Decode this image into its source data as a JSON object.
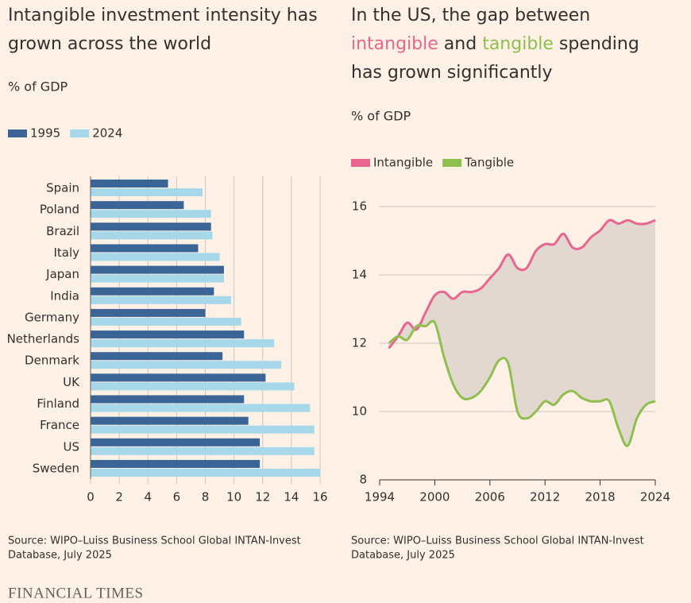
{
  "chart_data": [
    {
      "type": "bar",
      "orientation": "horizontal",
      "title_lines": [
        [
          {
            "text": "Intangible investment intensity has"
          }
        ],
        [
          {
            "text": "grown across the world"
          }
        ]
      ],
      "subtitle": "% of GDP",
      "categories": [
        "Spain",
        "Poland",
        "Brazil",
        "Italy",
        "Japan",
        "India",
        "Germany",
        "Netherlands",
        "Denmark",
        "UK",
        "Finland",
        "France",
        "US",
        "Sweden"
      ],
      "series": [
        {
          "name": "1995",
          "color": "#3b6597",
          "values": [
            5.4,
            6.5,
            8.4,
            7.5,
            9.3,
            8.6,
            8.0,
            10.7,
            9.2,
            12.2,
            10.7,
            11.0,
            11.8,
            11.8
          ]
        },
        {
          "name": "2024",
          "color": "#a7d8ea",
          "values": [
            7.8,
            8.4,
            8.5,
            9.0,
            9.3,
            9.8,
            10.5,
            12.8,
            13.3,
            14.2,
            15.3,
            15.6,
            15.6,
            16.0
          ]
        }
      ],
      "xlim": [
        0,
        16
      ],
      "xticks": [
        0,
        2,
        4,
        6,
        8,
        10,
        12,
        14,
        16
      ],
      "grid": true,
      "source_lines": [
        "Source: WIPO–Luiss Business School Global INTAN-Invest",
        "Database, July 2025"
      ]
    },
    {
      "type": "line",
      "title_lines": [
        [
          {
            "text": "In the US, the gap between"
          }
        ],
        [
          {
            "text": "intangible",
            "color": "#e8668f"
          },
          {
            "text": " and "
          },
          {
            "text": "tangible",
            "color": "#8fbf4f"
          },
          {
            "text": " spending"
          }
        ],
        [
          {
            "text": "has grown significantly"
          }
        ]
      ],
      "subtitle": "% of GDP",
      "x": [
        1995,
        1996,
        1997,
        1998,
        1999,
        2000,
        2001,
        2002,
        2003,
        2004,
        2005,
        2006,
        2007,
        2008,
        2009,
        2010,
        2011,
        2012,
        2013,
        2014,
        2015,
        2016,
        2017,
        2018,
        2019,
        2020,
        2021,
        2022,
        2023,
        2024
      ],
      "series": [
        {
          "name": "Intangible",
          "color": "#e8668f",
          "values": [
            11.85,
            12.2,
            12.6,
            12.4,
            12.9,
            13.4,
            13.5,
            13.3,
            13.5,
            13.5,
            13.6,
            13.9,
            14.2,
            14.6,
            14.2,
            14.2,
            14.7,
            14.9,
            14.9,
            15.2,
            14.8,
            14.8,
            15.1,
            15.3,
            15.6,
            15.5,
            15.6,
            15.5,
            15.5,
            15.6
          ]
        },
        {
          "name": "Tangible",
          "color": "#8fbf4f",
          "values": [
            12.0,
            12.2,
            12.1,
            12.5,
            12.5,
            12.6,
            11.6,
            10.8,
            10.4,
            10.4,
            10.6,
            11.0,
            11.5,
            11.4,
            10.0,
            9.8,
            10.0,
            10.3,
            10.2,
            10.5,
            10.6,
            10.4,
            10.3,
            10.3,
            10.3,
            9.5,
            9.0,
            9.8,
            10.2,
            10.3
          ]
        }
      ],
      "fill_between": true,
      "fill_color": "#e3d8cf",
      "xlim": [
        1994,
        2024
      ],
      "xticks": [
        1994,
        2000,
        2006,
        2012,
        2018,
        2024
      ],
      "ylim": [
        8,
        16.3
      ],
      "yticks": [
        8,
        10,
        12,
        14,
        16
      ],
      "grid": true,
      "source_lines": [
        "Source: WIPO–Luiss Business School Global INTAN-Invest",
        "Database, July 2025"
      ]
    }
  ],
  "footer": "FINANCIAL TIMES"
}
